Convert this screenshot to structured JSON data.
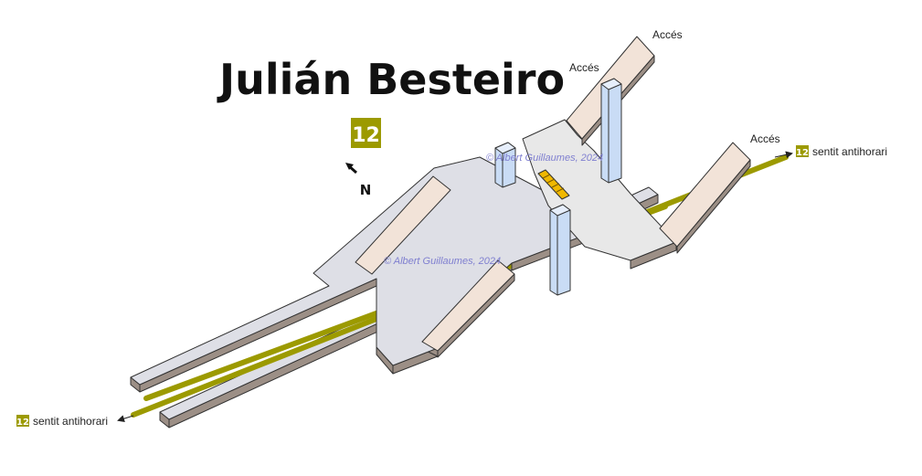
{
  "station": {
    "name": "Julián Besteiro",
    "line": "12",
    "line_color": "#9c9a00"
  },
  "compass": {
    "label": "N"
  },
  "labels": {
    "access": "Accés",
    "direction_right": "sentit antihorari",
    "direction_left": "sentit antihorari"
  },
  "watermark": "© Albert Guillaumes, 2024",
  "colors": {
    "platform": "#dedfe6",
    "platform_side": "#9c8f86",
    "access_ramp": "#f2e3d8",
    "elevator": "#c9dcf5",
    "track": "#9c9a00",
    "escalator": "#f0b800"
  }
}
